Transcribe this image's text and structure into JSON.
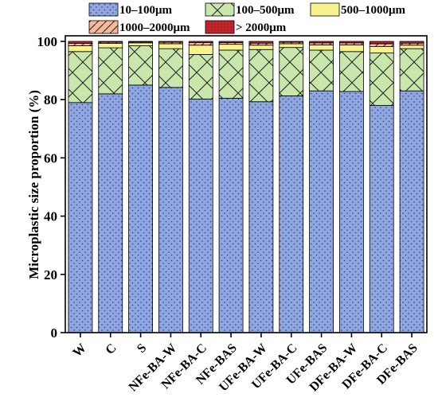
{
  "chart_data": {
    "type": "bar",
    "stacked": true,
    "title": "",
    "xlabel": "",
    "ylabel": "Microplastic size proportion (%)",
    "ylim": [
      0,
      100
    ],
    "yticks": [
      0,
      20,
      40,
      60,
      80,
      100
    ],
    "legend_position": "top",
    "categories": [
      "W",
      "C",
      "S",
      "NFe-BA-W",
      "NFe-BA-C",
      "NFe-BAS",
      "UFe-BA-W",
      "UFe-BA-C",
      "UFe-BAS",
      "DFe-BA-W",
      "DFe-BA-C",
      "DFe-BAS"
    ],
    "series": [
      {
        "name": "10–100μm",
        "color": "#8fa6e0",
        "pattern": "dots",
        "values": [
          79.0,
          82.0,
          85.0,
          84.2,
          80.2,
          80.5,
          79.3,
          81.3,
          83.0,
          82.8,
          78.0,
          83.0
        ]
      },
      {
        "name": "100–500μm",
        "color": "#c9e7ad",
        "pattern": "crosshatch",
        "values": [
          17.5,
          15.8,
          13.5,
          13.3,
          15.3,
          16.5,
          17.9,
          16.6,
          14.0,
          13.7,
          18.0,
          14.5
        ]
      },
      {
        "name": "500–1000μm",
        "color": "#f8f28d",
        "pattern": "solid",
        "values": [
          2.0,
          1.5,
          1.0,
          1.7,
          3.2,
          2.0,
          1.5,
          1.3,
          1.8,
          2.3,
          2.2,
          1.2
        ]
      },
      {
        "name": "1000–2000μm",
        "color": "#f7b99a",
        "pattern": "slash",
        "values": [
          0.8,
          0.4,
          0.3,
          0.5,
          0.9,
          0.6,
          0.7,
          0.5,
          0.7,
          0.7,
          1.0,
          0.7
        ]
      },
      {
        "name": "> 2000μm",
        "color": "#c0272d",
        "pattern": "dots",
        "values": [
          0.7,
          0.3,
          0.2,
          0.3,
          0.4,
          0.4,
          0.6,
          0.3,
          0.5,
          0.5,
          0.8,
          0.6
        ]
      }
    ]
  }
}
